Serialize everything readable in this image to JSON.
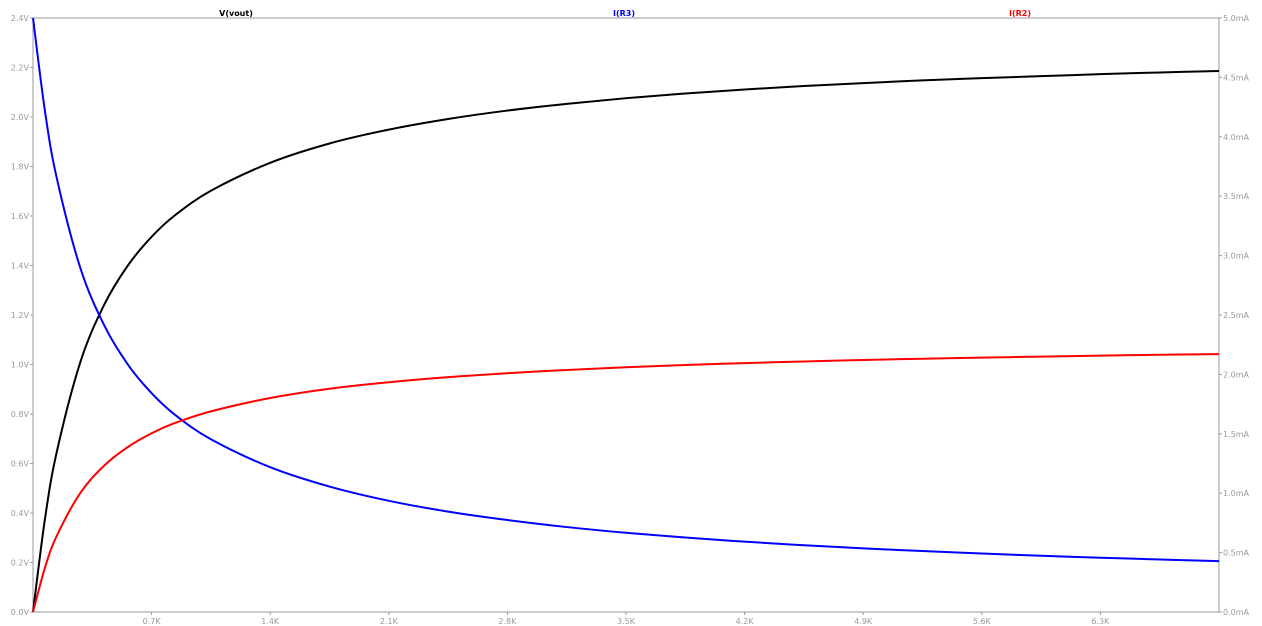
{
  "chart_data": {
    "type": "line",
    "grid": false,
    "x_range": [
      0,
      7000
    ],
    "x_ticks": [
      {
        "value": 700,
        "label": "0.7K"
      },
      {
        "value": 1400,
        "label": "1.4K"
      },
      {
        "value": 2100,
        "label": "2.1K"
      },
      {
        "value": 2800,
        "label": "2.8K"
      },
      {
        "value": 3500,
        "label": "3.5K"
      },
      {
        "value": 4200,
        "label": "4.2K"
      },
      {
        "value": 4900,
        "label": "4.9K"
      },
      {
        "value": 5600,
        "label": "5.6K"
      },
      {
        "value": 6300,
        "label": "6.3K"
      }
    ],
    "y_left": {
      "range": [
        0,
        2.4
      ],
      "ticks": [
        {
          "value": 0.0,
          "label": "0.0V"
        },
        {
          "value": 0.2,
          "label": "0.2V"
        },
        {
          "value": 0.4,
          "label": "0.4V"
        },
        {
          "value": 0.6,
          "label": "0.6V"
        },
        {
          "value": 0.8,
          "label": "0.8V"
        },
        {
          "value": 1.0,
          "label": "1.0V"
        },
        {
          "value": 1.2,
          "label": "1.2V"
        },
        {
          "value": 1.4,
          "label": "1.4V"
        },
        {
          "value": 1.6,
          "label": "1.6V"
        },
        {
          "value": 1.8,
          "label": "1.8V"
        },
        {
          "value": 2.0,
          "label": "2.0V"
        },
        {
          "value": 2.2,
          "label": "2.2V"
        },
        {
          "value": 2.4,
          "label": "2.4V"
        }
      ]
    },
    "y_right": {
      "range": [
        0,
        5.0
      ],
      "ticks": [
        {
          "value": 0.0,
          "label": "0.0mA"
        },
        {
          "value": 0.5,
          "label": "0.5mA"
        },
        {
          "value": 1.0,
          "label": "1.0mA"
        },
        {
          "value": 1.5,
          "label": "1.5mA"
        },
        {
          "value": 2.0,
          "label": "2.0mA"
        },
        {
          "value": 2.5,
          "label": "2.5mA"
        },
        {
          "value": 3.0,
          "label": "3.0mA"
        },
        {
          "value": 3.5,
          "label": "3.5mA"
        },
        {
          "value": 4.0,
          "label": "4.0mA"
        },
        {
          "value": 4.5,
          "label": "4.5mA"
        },
        {
          "value": 5.0,
          "label": "5.0mA"
        }
      ]
    },
    "series": [
      {
        "name": "V(vout)",
        "color": "#000000",
        "axis": "left",
        "x": [
          0,
          70,
          140,
          280,
          420,
          560,
          700,
          840,
          1050,
          1400,
          1750,
          2100,
          2450,
          2800,
          3150,
          3500,
          3850,
          4200,
          4550,
          4900,
          5250,
          5600,
          5950,
          6300,
          6650,
          7000
        ],
        "y": [
          0.0,
          0.373,
          0.646,
          1.011,
          1.241,
          1.4,
          1.516,
          1.604,
          1.702,
          1.815,
          1.893,
          1.949,
          1.992,
          2.026,
          2.053,
          2.076,
          2.095,
          2.111,
          2.125,
          2.137,
          2.148,
          2.157,
          2.165,
          2.173,
          2.18,
          2.186
        ]
      },
      {
        "name": "I(R3)",
        "color": "#0000ff",
        "axis": "right",
        "x": [
          0,
          70,
          140,
          280,
          420,
          560,
          700,
          840,
          1050,
          1400,
          1750,
          2100,
          2450,
          2800,
          3150,
          3500,
          3850,
          4200,
          4550,
          4900,
          5250,
          5600,
          5950,
          6300,
          6650,
          7000
        ],
        "y": [
          5.0,
          4.222,
          3.654,
          2.893,
          2.414,
          2.083,
          1.842,
          1.658,
          1.454,
          1.219,
          1.056,
          0.936,
          0.845,
          0.774,
          0.715,
          0.667,
          0.627,
          0.592,
          0.562,
          0.536,
          0.513,
          0.492,
          0.473,
          0.457,
          0.442,
          0.428
        ]
      },
      {
        "name": "I(R2)",
        "color": "#ff0000",
        "axis": "right",
        "x": [
          0,
          70,
          140,
          280,
          420,
          560,
          700,
          840,
          1050,
          1400,
          1750,
          2100,
          2450,
          2800,
          3150,
          3500,
          3850,
          4200,
          4550,
          4900,
          5250,
          5600,
          5950,
          6300,
          6650,
          7000
        ],
        "y": [
          0.0,
          0.37,
          0.64,
          1.003,
          1.232,
          1.389,
          1.505,
          1.592,
          1.689,
          1.801,
          1.879,
          1.934,
          1.977,
          2.01,
          2.037,
          2.06,
          2.079,
          2.095,
          2.109,
          2.121,
          2.132,
          2.141,
          2.15,
          2.158,
          2.165,
          2.171
        ]
      }
    ]
  }
}
